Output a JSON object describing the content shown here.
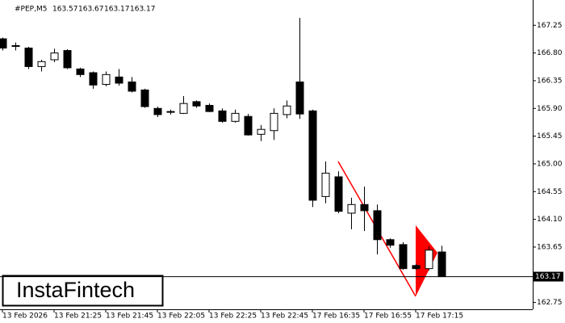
{
  "chart_data": {
    "type": "candlestick",
    "title": "#PEP,M5",
    "header_values": [
      163.57,
      163.67,
      163.17,
      163.17
    ],
    "categories": [
      "13 Feb 2026",
      null,
      null,
      null,
      "13 Feb 21:25",
      null,
      null,
      null,
      "13 Feb 21:45",
      null,
      null,
      null,
      "13 Feb 22:05",
      null,
      null,
      null,
      "13 Feb 22:25",
      null,
      null,
      null,
      "13 Feb 22:45",
      null,
      null,
      null,
      "17 Feb 16:35",
      null,
      null,
      null,
      "17 Feb 16:55",
      null,
      null,
      null,
      "17 Feb 17:15",
      null,
      null
    ],
    "open": [
      167.03,
      166.92,
      166.88,
      166.58,
      166.69,
      166.84,
      166.54,
      166.48,
      166.29,
      166.41,
      166.33,
      166.2,
      165.9,
      165.85,
      165.82,
      166.01,
      165.95,
      165.86,
      165.69,
      165.77,
      165.48,
      165.54,
      165.8,
      166.33,
      165.86,
      164.47,
      164.79,
      164.2,
      164.34,
      164.24,
      163.77,
      163.69,
      163.35,
      163.3,
      163.57
    ],
    "high": [
      167.05,
      166.97,
      166.9,
      166.69,
      166.87,
      166.86,
      166.56,
      166.5,
      166.5,
      166.54,
      166.41,
      166.22,
      165.93,
      165.88,
      166.1,
      166.03,
      165.98,
      165.9,
      165.88,
      165.81,
      165.63,
      165.9,
      166.03,
      167.37,
      165.88,
      165.04,
      164.88,
      164.45,
      164.63,
      164.34,
      163.79,
      163.73,
      163.38,
      163.66,
      163.67
    ],
    "low": [
      166.84,
      166.84,
      166.54,
      166.5,
      166.65,
      166.54,
      166.41,
      166.22,
      166.26,
      166.27,
      166.16,
      165.91,
      165.76,
      165.8,
      165.81,
      165.91,
      165.84,
      165.67,
      165.67,
      165.46,
      165.37,
      165.39,
      165.74,
      165.73,
      164.3,
      164.36,
      164.2,
      163.94,
      163.91,
      163.53,
      163.64,
      163.28,
      163.28,
      163.27,
      163.17
    ],
    "close": [
      166.88,
      166.92,
      166.58,
      166.66,
      166.8,
      166.56,
      166.45,
      166.28,
      166.45,
      166.31,
      166.18,
      165.93,
      165.8,
      165.84,
      165.98,
      165.94,
      165.85,
      165.69,
      165.82,
      165.47,
      165.56,
      165.82,
      165.94,
      165.81,
      164.41,
      164.85,
      164.23,
      164.34,
      164.24,
      163.77,
      163.68,
      163.3,
      163.3,
      163.6,
      163.17
    ],
    "current_price": 163.17,
    "ylim": [
      162.64,
      167.66
    ],
    "yticks": [
      167.25,
      {
        "value": 166.8,
        "label": "166.80"
      },
      166.35,
      {
        "value": 165.9,
        "label": "165.90"
      },
      165.45,
      {
        "value": 165,
        "label": "165.00"
      },
      164.55,
      {
        "value": 164.1,
        "label": "164.10"
      },
      163.65,
      162.75
    ],
    "up_color": "#ffffff",
    "down_color": "#000000",
    "grid": false,
    "watermark": "InstaFintech"
  }
}
